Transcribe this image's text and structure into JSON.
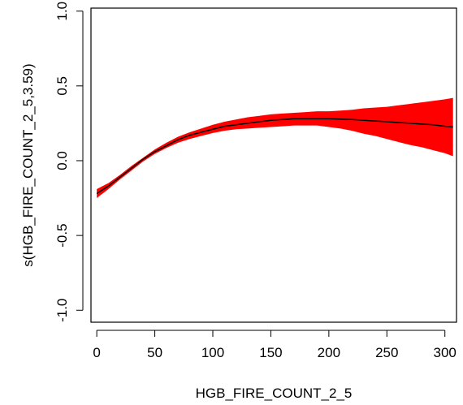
{
  "chart_data": {
    "type": "line",
    "title": "",
    "xlabel": "HGB_FIRE_COUNT_2_5",
    "ylabel": "s(HGB_FIRE_COUNT_2_5,3.59)",
    "xlim": [
      -5,
      310
    ],
    "ylim": [
      -1.08,
      1.02
    ],
    "x_ticks": [
      0,
      50,
      100,
      150,
      200,
      250,
      300
    ],
    "y_ticks": [
      -1.0,
      -0.5,
      0.0,
      0.5,
      1.0
    ],
    "x_tick_labels": [
      "0",
      "50",
      "100",
      "150",
      "200",
      "250",
      "300"
    ],
    "y_tick_labels": [
      "-1.0",
      "-0.5",
      "0.0",
      "0.5",
      "1.0"
    ],
    "grid": false,
    "series": [
      {
        "role": "smooth-estimate",
        "color": "#000000",
        "x": [
          0,
          10,
          20,
          30,
          40,
          50,
          60,
          70,
          80,
          90,
          100,
          110,
          120,
          130,
          140,
          150,
          160,
          170,
          180,
          190,
          200,
          210,
          220,
          230,
          240,
          250,
          260,
          270,
          280,
          290,
          300,
          307
        ],
        "y": [
          -0.22,
          -0.17,
          -0.11,
          -0.05,
          0.01,
          0.06,
          0.1,
          0.14,
          0.17,
          0.19,
          0.21,
          0.23,
          0.24,
          0.25,
          0.26,
          0.27,
          0.275,
          0.28,
          0.28,
          0.28,
          0.28,
          0.278,
          0.275,
          0.27,
          0.265,
          0.26,
          0.255,
          0.25,
          0.245,
          0.24,
          0.23,
          0.225
        ]
      },
      {
        "role": "confidence-band",
        "color": "#ff0000",
        "x": [
          0,
          10,
          20,
          30,
          40,
          50,
          60,
          70,
          80,
          90,
          100,
          110,
          120,
          130,
          140,
          150,
          160,
          170,
          180,
          190,
          200,
          210,
          220,
          230,
          240,
          250,
          260,
          270,
          280,
          290,
          300,
          307
        ],
        "upper": [
          -0.19,
          -0.15,
          -0.095,
          -0.035,
          0.02,
          0.075,
          0.12,
          0.16,
          0.19,
          0.215,
          0.24,
          0.26,
          0.275,
          0.29,
          0.3,
          0.31,
          0.315,
          0.32,
          0.325,
          0.33,
          0.33,
          0.335,
          0.34,
          0.35,
          0.355,
          0.36,
          0.37,
          0.38,
          0.39,
          0.4,
          0.41,
          0.42
        ],
        "lower": [
          -0.25,
          -0.19,
          -0.125,
          -0.065,
          -0.005,
          0.045,
          0.085,
          0.12,
          0.145,
          0.165,
          0.185,
          0.2,
          0.21,
          0.215,
          0.22,
          0.225,
          0.23,
          0.235,
          0.235,
          0.235,
          0.225,
          0.215,
          0.2,
          0.18,
          0.165,
          0.145,
          0.125,
          0.105,
          0.09,
          0.07,
          0.05,
          0.03
        ]
      }
    ]
  }
}
